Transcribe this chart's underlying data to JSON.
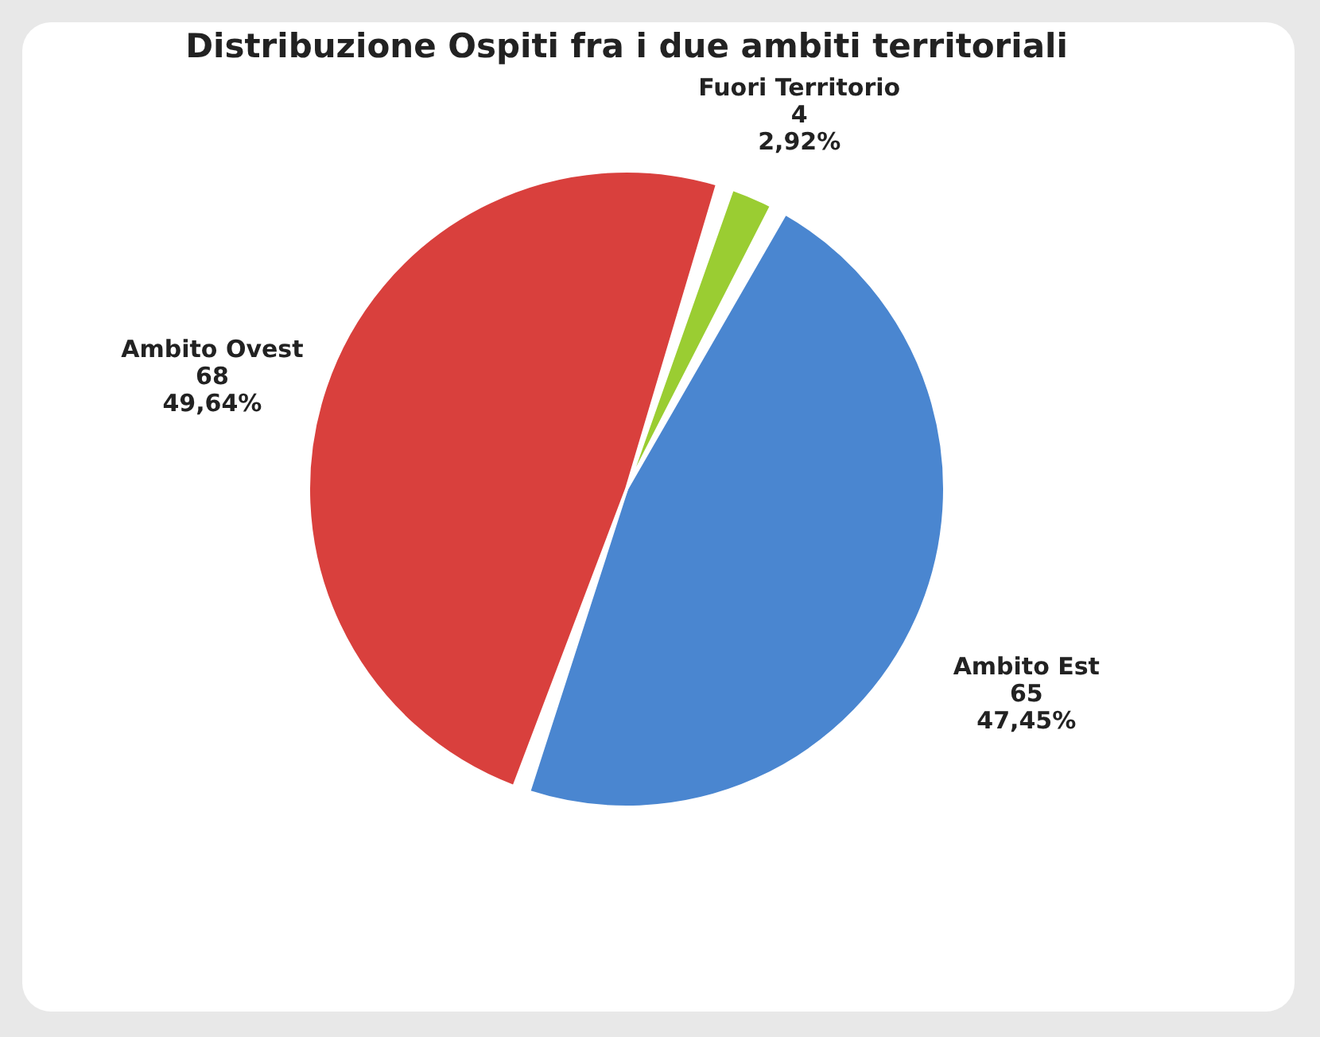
{
  "chart_data": {
    "type": "pie",
    "title": "Distribuzione Ospiti fra i due ambiti territoriali",
    "categories": [
      "Fuori Territorio",
      "Ambito Est",
      "Ambito Ovest"
    ],
    "values": [
      4,
      65,
      68
    ],
    "colors": [
      "#9acd32",
      "#4a86d0",
      "#d9403d"
    ],
    "value_labels": [
      "4\n2,92%",
      "65\n47,45%",
      "68\n49,64%"
    ]
  }
}
